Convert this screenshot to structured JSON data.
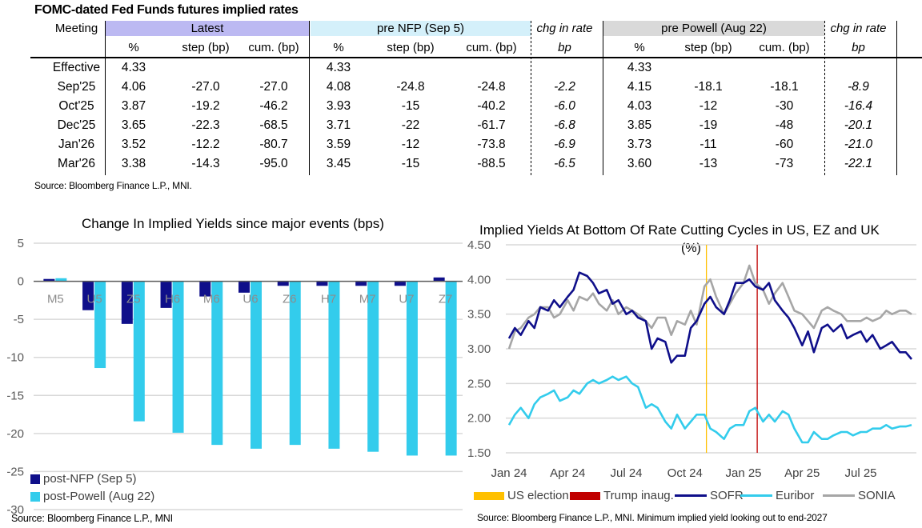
{
  "table": {
    "title": "FOMC-dated Fed Funds futures implied rates",
    "meeting_header": "Meeting",
    "groups": [
      {
        "label": "Latest",
        "color": "#bcb9f2"
      },
      {
        "label": "pre NFP (Sep 5)",
        "color": "#d4f0fa"
      },
      {
        "label": "chg in rate",
        "unit": "bp"
      },
      {
        "label": "pre Powell (Aug 22)",
        "color": "#d9d9d9"
      },
      {
        "label": "chg in rate",
        "unit": "bp"
      }
    ],
    "sub_headers": [
      "%",
      "step (bp)",
      "cum. (bp)"
    ],
    "rows": [
      {
        "meeting": "Effective",
        "latest": [
          "4.33",
          "",
          ""
        ],
        "pre_nfp": [
          "4.33",
          "",
          ""
        ],
        "chg_nfp": "",
        "pre_powell": [
          "4.33",
          "",
          ""
        ],
        "chg_powell": ""
      },
      {
        "meeting": "Sep'25",
        "latest": [
          "4.06",
          "-27.0",
          "-27.0"
        ],
        "pre_nfp": [
          "4.08",
          "-24.8",
          "-24.8"
        ],
        "chg_nfp": "-2.2",
        "pre_powell": [
          "4.15",
          "-18.1",
          "-18.1"
        ],
        "chg_powell": "-8.9"
      },
      {
        "meeting": "Oct'25",
        "latest": [
          "3.87",
          "-19.2",
          "-46.2"
        ],
        "pre_nfp": [
          "3.93",
          "-15",
          "-40.2"
        ],
        "chg_nfp": "-6.0",
        "pre_powell": [
          "4.03",
          "-12",
          "-30"
        ],
        "chg_powell": "-16.4"
      },
      {
        "meeting": "Dec'25",
        "latest": [
          "3.65",
          "-22.3",
          "-68.5"
        ],
        "pre_nfp": [
          "3.71",
          "-22",
          "-61.7"
        ],
        "chg_nfp": "-6.8",
        "pre_powell": [
          "3.85",
          "-19",
          "-48"
        ],
        "chg_powell": "-20.1"
      },
      {
        "meeting": "Jan'26",
        "latest": [
          "3.52",
          "-12.2",
          "-80.7"
        ],
        "pre_nfp": [
          "3.59",
          "-12",
          "-73.8"
        ],
        "chg_nfp": "-6.9",
        "pre_powell": [
          "3.73",
          "-11",
          "-60"
        ],
        "chg_powell": "-21.0"
      },
      {
        "meeting": "Mar'26",
        "latest": [
          "3.38",
          "-14.3",
          "-95.0"
        ],
        "pre_nfp": [
          "3.45",
          "-15",
          "-88.5"
        ],
        "chg_nfp": "-6.5",
        "pre_powell": [
          "3.60",
          "-13",
          "-73"
        ],
        "chg_powell": "-22.1"
      }
    ],
    "source": "Source: Bloomberg Finance L.P., MNI."
  },
  "chart_data": [
    {
      "type": "bar",
      "title": "Change In Implied Yields since major events (bps)",
      "xlabel": "",
      "ylabel": "",
      "categories": [
        "M5",
        "U5",
        "Z5",
        "H6",
        "M6",
        "U6",
        "Z6",
        "H7",
        "M7",
        "U7",
        "Z7"
      ],
      "series": [
        {
          "name": "post-NFP (Sep 5)",
          "color": "#0f0f8a",
          "values": [
            0.3,
            -3.8,
            -5.6,
            -3.5,
            -2.0,
            -1.5,
            -0.6,
            -0.6,
            -0.6,
            -0.6,
            0.5
          ]
        },
        {
          "name": "post-Powell (Aug 22)",
          "color": "#33ccec",
          "values": [
            0.4,
            -11.4,
            -18.4,
            -19.9,
            -21.5,
            -22.0,
            -21.5,
            -22.0,
            -22.4,
            -22.9,
            -22.9
          ]
        }
      ],
      "ylim": [
        -30,
        5
      ],
      "yticks": [
        "5",
        "0",
        "-5",
        "-10",
        "-15",
        "-20",
        "-25",
        "-30"
      ],
      "grid": true,
      "legend_position": "bottom-left",
      "source": "Source: Bloomberg Finance L.P., MNI"
    },
    {
      "type": "line",
      "title": "Implied Yields At Bottom Of Rate Cutting Cycles in US, EZ and UK",
      "subtitle": "(%)",
      "xlabel": "",
      "ylabel": "",
      "x_ticks": [
        "Jan 24",
        "Apr 24",
        "Jul 24",
        "Oct 24",
        "Jan 25",
        "Apr 25",
        "Jul 25"
      ],
      "x_range_months": [
        0,
        20.6
      ],
      "ylim": [
        1.5,
        4.5
      ],
      "yticks": [
        "4.50",
        "4.00",
        "3.50",
        "3.00",
        "2.50",
        "2.00",
        "1.50"
      ],
      "grid": true,
      "events": [
        {
          "name": "US election",
          "color": "#ffc000",
          "x_month": 10.1
        },
        {
          "name": "Trump inaug.",
          "color": "#c00000",
          "x_month": 12.7
        }
      ],
      "series": [
        {
          "name": "SOFR",
          "color": "#0f0f8a",
          "x_month": [
            0,
            0.3,
            0.6,
            1.0,
            1.3,
            1.6,
            2.0,
            2.3,
            2.6,
            3.0,
            3.3,
            3.6,
            4.0,
            4.3,
            4.6,
            5.0,
            5.3,
            5.6,
            6.0,
            6.3,
            6.6,
            7.0,
            7.3,
            7.6,
            8.0,
            8.3,
            8.6,
            9.0,
            9.3,
            9.6,
            10.0,
            10.3,
            10.6,
            11.0,
            11.3,
            11.6,
            12.0,
            12.3,
            12.6,
            13.0,
            13.3,
            13.6,
            14.0,
            14.3,
            14.6,
            15.0,
            15.3,
            15.6,
            16.0,
            16.3,
            16.6,
            17.0,
            17.3,
            17.6,
            18.0,
            18.3,
            18.6,
            19.0,
            19.3,
            19.6,
            20.0,
            20.3,
            20.6
          ],
          "values": [
            3.15,
            3.3,
            3.2,
            3.4,
            3.3,
            3.6,
            3.55,
            3.7,
            3.6,
            3.75,
            3.85,
            4.1,
            4.05,
            3.95,
            3.8,
            3.85,
            3.65,
            3.7,
            3.5,
            3.55,
            3.45,
            3.4,
            3.0,
            3.15,
            3.1,
            2.8,
            2.9,
            2.9,
            3.3,
            3.4,
            3.65,
            3.75,
            3.6,
            3.5,
            3.7,
            3.95,
            3.95,
            4.0,
            3.9,
            3.85,
            3.95,
            3.7,
            3.55,
            3.45,
            3.3,
            3.05,
            3.25,
            2.95,
            3.3,
            3.35,
            3.25,
            3.35,
            3.15,
            3.2,
            3.25,
            3.1,
            3.2,
            3.0,
            3.05,
            3.1,
            2.95,
            2.95,
            2.85
          ]
        },
        {
          "name": "Euribor",
          "color": "#33ccec",
          "x_month": [
            0,
            0.3,
            0.6,
            1.0,
            1.3,
            1.6,
            2.0,
            2.3,
            2.6,
            3.0,
            3.3,
            3.6,
            4.0,
            4.3,
            4.6,
            5.0,
            5.3,
            5.6,
            6.0,
            6.3,
            6.6,
            7.0,
            7.3,
            7.6,
            8.0,
            8.3,
            8.6,
            9.0,
            9.3,
            9.6,
            10.0,
            10.3,
            10.6,
            11.0,
            11.3,
            11.6,
            12.0,
            12.3,
            12.6,
            13.0,
            13.3,
            13.6,
            14.0,
            14.3,
            14.6,
            15.0,
            15.3,
            15.6,
            16.0,
            16.3,
            16.6,
            17.0,
            17.3,
            17.6,
            18.0,
            18.3,
            18.6,
            19.0,
            19.3,
            19.6,
            20.0,
            20.3,
            20.6
          ],
          "values": [
            1.9,
            2.05,
            2.15,
            2.0,
            2.2,
            2.3,
            2.35,
            2.4,
            2.25,
            2.3,
            2.4,
            2.35,
            2.5,
            2.55,
            2.5,
            2.55,
            2.6,
            2.55,
            2.6,
            2.5,
            2.45,
            2.15,
            2.2,
            2.15,
            1.95,
            1.85,
            2.05,
            1.85,
            1.95,
            2.05,
            2.05,
            1.85,
            1.8,
            1.7,
            1.85,
            1.9,
            1.9,
            2.1,
            2.15,
            1.95,
            2.05,
            1.95,
            2.1,
            2.05,
            1.85,
            1.65,
            1.65,
            1.8,
            1.7,
            1.7,
            1.75,
            1.8,
            1.8,
            1.75,
            1.8,
            1.8,
            1.85,
            1.85,
            1.9,
            1.85,
            1.88,
            1.88,
            1.9
          ]
        },
        {
          "name": "SONIA",
          "color": "#a6a6a6",
          "x_month": [
            0,
            0.3,
            0.6,
            1.0,
            1.3,
            1.6,
            2.0,
            2.3,
            2.6,
            3.0,
            3.3,
            3.6,
            4.0,
            4.3,
            4.6,
            5.0,
            5.3,
            5.6,
            6.0,
            6.3,
            6.6,
            7.0,
            7.3,
            7.6,
            8.0,
            8.3,
            8.6,
            9.0,
            9.3,
            9.6,
            10.0,
            10.3,
            10.6,
            11.0,
            11.3,
            11.6,
            12.0,
            12.3,
            12.6,
            13.0,
            13.3,
            13.6,
            14.0,
            14.3,
            14.6,
            15.0,
            15.3,
            15.6,
            16.0,
            16.3,
            16.6,
            17.0,
            17.3,
            17.6,
            18.0,
            18.3,
            18.6,
            19.0,
            19.3,
            19.6,
            20.0,
            20.3,
            20.6
          ],
          "values": [
            3.0,
            3.25,
            3.3,
            3.45,
            3.5,
            3.6,
            3.6,
            3.45,
            3.5,
            3.7,
            3.55,
            3.75,
            3.7,
            3.8,
            3.65,
            3.55,
            3.7,
            3.5,
            3.6,
            3.55,
            3.5,
            3.4,
            3.3,
            3.45,
            3.45,
            3.2,
            3.4,
            3.35,
            3.55,
            3.35,
            3.9,
            4.0,
            3.75,
            3.5,
            3.65,
            3.8,
            3.95,
            4.2,
            3.95,
            3.85,
            3.65,
            3.8,
            3.95,
            3.75,
            3.55,
            3.5,
            3.4,
            3.3,
            3.55,
            3.6,
            3.55,
            3.5,
            3.4,
            3.4,
            3.4,
            3.45,
            3.4,
            3.45,
            3.55,
            3.5,
            3.55,
            3.55,
            3.5
          ]
        }
      ],
      "legend_position": "bottom",
      "source": "Source: Bloomberg Finance L.P., MNI. Minimum implied yield looking out to end-2027"
    }
  ]
}
